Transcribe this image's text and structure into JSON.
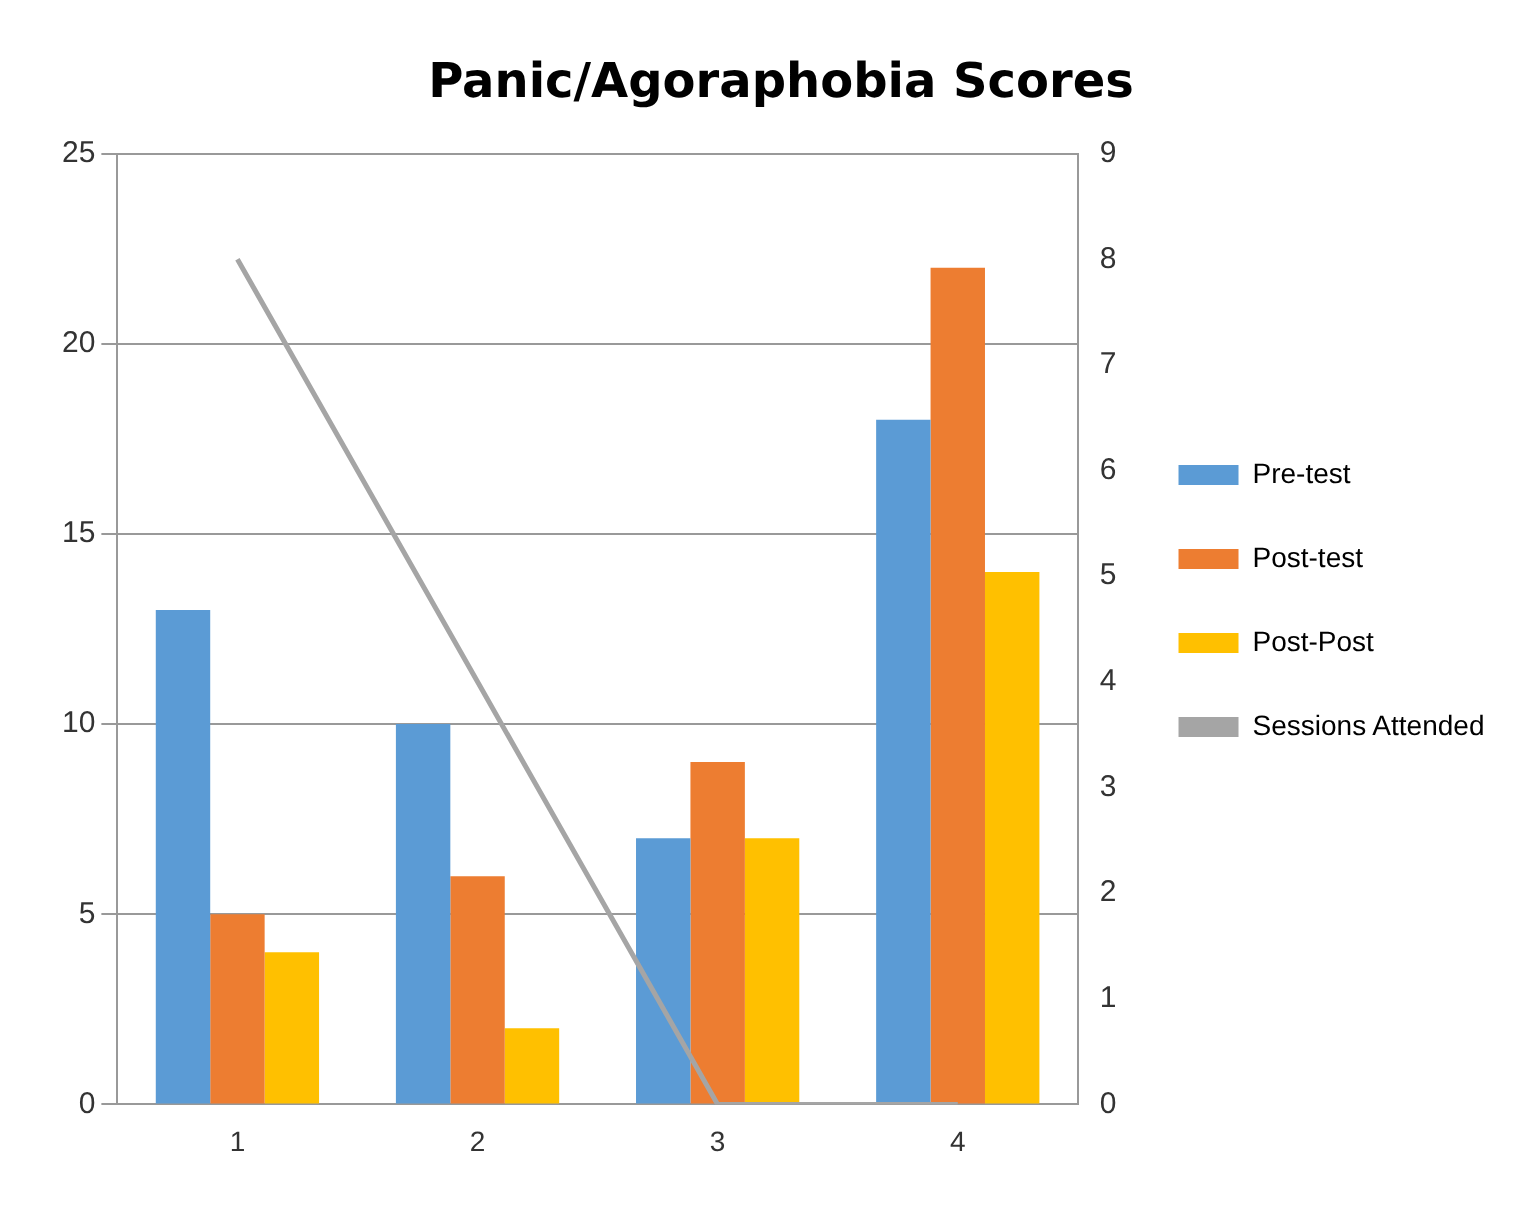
{
  "chart_data": {
    "type": "bar",
    "title": "Panic/Agoraphobia Scores",
    "categories": [
      "1",
      "2",
      "3",
      "4"
    ],
    "series": [
      {
        "name": "Pre-test",
        "color": "#5b9bd5",
        "values": [
          13,
          10,
          7,
          18
        ]
      },
      {
        "name": "Post-test",
        "color": "#ed7d31",
        "values": [
          5,
          6,
          9,
          22
        ]
      },
      {
        "name": "Post-Post",
        "color": "#ffc000",
        "values": [
          4,
          2,
          7,
          14
        ]
      },
      {
        "name": "Sessions Attended",
        "color": "#a5a5a5",
        "type": "line",
        "axis": "y2",
        "values": [
          8,
          4,
          0,
          0
        ]
      }
    ],
    "ylim": [
      0,
      25
    ],
    "yticks": [
      0,
      5,
      10,
      15,
      20,
      25
    ],
    "y2lim": [
      0,
      9
    ],
    "y2ticks": [
      0,
      1,
      2,
      3,
      4,
      5,
      6,
      7,
      8,
      9
    ],
    "grid": "y",
    "legend": "right",
    "marker": "none"
  }
}
